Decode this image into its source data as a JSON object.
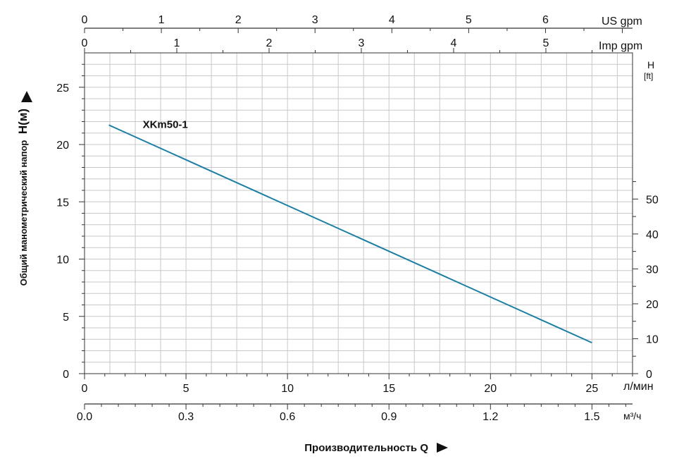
{
  "chart_data": {
    "type": "line",
    "title": "",
    "ylabel": "Общий манометрический напор",
    "ylabel_unit": "H(м)",
    "ylim": [
      0,
      28
    ],
    "yticks": [
      0,
      5,
      10,
      15,
      20,
      25
    ],
    "y_right": {
      "label": "H",
      "unit": "[ft]",
      "ticks": [
        0,
        10,
        20,
        30,
        40,
        50
      ]
    },
    "x_axis_lpm": {
      "unit": "л/мин",
      "range": [
        0,
        27
      ],
      "ticks": [
        0,
        5,
        10,
        15,
        20,
        25
      ]
    },
    "x_axis_m3h": {
      "unit": "м³/ч",
      "ticks": [
        "0.0",
        "0.3",
        "0.6",
        "0.9",
        "1.2",
        "1.5"
      ]
    },
    "xlabel": "Производительность Q",
    "top_axis_us": {
      "unit": "US gpm",
      "ticks": [
        0,
        1,
        2,
        3,
        4,
        5,
        6
      ]
    },
    "top_axis_imp": {
      "unit": "Imp gpm",
      "ticks": [
        0,
        1,
        2,
        3,
        4,
        5
      ]
    },
    "grid": true,
    "series": [
      {
        "name": "XKm50-1",
        "color": "#1a7fa6",
        "x": [
          1.2,
          25
        ],
        "y": [
          21.7,
          2.7
        ]
      }
    ]
  }
}
